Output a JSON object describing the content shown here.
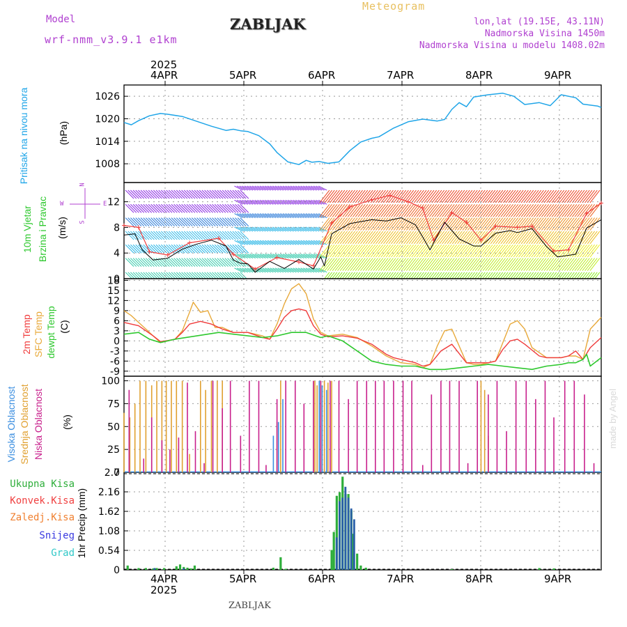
{
  "header": {
    "model_label": "Model",
    "model_name": "wrf-nmm_v3.9.1  e1km",
    "station": "ZABLJAK",
    "product": "Meteogram",
    "location": "lon,lat (19.15E, 43.11N)",
    "altitude": "Nadmorska Visina 1450m",
    "model_altitude": "Nadmorska Visina u modelu 1408.02m",
    "watermark": "made by Angel",
    "footer_station": "ZABLJAK"
  },
  "axes": {
    "year_top": "2025",
    "year_bottom": "2025",
    "day_labels": [
      "4APR",
      "5APR",
      "6APR",
      "7APR",
      "8APR",
      "9APR"
    ]
  },
  "panels": {
    "pressure": {
      "label_name": "Pritisak na nivou mora",
      "unit": "(hPa)",
      "ticks": [
        "1026",
        "1020",
        "1014",
        "1008"
      ]
    },
    "wind": {
      "label_name": "10m Vjetar",
      "label_name2": "Brzina i Pravac",
      "unit": "(m/s)",
      "ticks": [
        "12",
        "8",
        "4",
        "0"
      ],
      "compass": {
        "n": "N",
        "w": "W",
        "e": "E",
        "s": "S"
      }
    },
    "temp": {
      "label1": "2m Temp",
      "label2": "SFC Temp",
      "label3": "dewpt Temp",
      "unit": "(C)",
      "ticks": [
        "18",
        "15",
        "12",
        "9",
        "6",
        "3",
        "0",
        "-3",
        "-6",
        "-9"
      ]
    },
    "cloud": {
      "label1": "Visoka Oblacnost",
      "label2": "Srednja Oblacnost",
      "label3": "Niska Oblacnost",
      "unit": "(%)",
      "ticks": [
        "100",
        "75",
        "50",
        "25",
        "0"
      ]
    },
    "precip": {
      "legend": [
        "Ukupna Kisa",
        "Konvek.Kisa",
        "Zaledj.Kisa",
        "Snijeg",
        "Grad"
      ],
      "unit": "1hr Precip (mm)",
      "ticks": [
        "2.7",
        "2.16",
        "1.62",
        "1.08",
        "0.54",
        "0"
      ]
    }
  },
  "colors": {
    "pressure": "#1fa5e8",
    "temp_2m": "#f03a3a",
    "temp_sfc": "#e8a93a",
    "temp_dew": "#2ec82e",
    "cloud_high": "#3a8ee0",
    "cloud_mid": "#e0a030",
    "cloud_low": "#c8208c",
    "precip_total": "#2eae3a",
    "precip_conv": "#f04040",
    "precip_frz": "#f08030",
    "precip_snow": "#3a3ae0",
    "precip_grad": "#30c8c8",
    "wind_speed": "#000000",
    "wind_gust": "#f04040",
    "header_purple": "#b040d0",
    "header_orange": "#e8c060"
  },
  "chart_data": [
    {
      "type": "line",
      "title": "Pritisak na nivou mora",
      "ylabel": "hPa",
      "ylim": [
        1003,
        1029
      ],
      "x_units": "days since 4APR 00UTC",
      "series": [
        {
          "name": "Pritisak na nivou mora",
          "x": [
            -0.5,
            -0.4,
            -0.3,
            -0.15,
            0,
            0.1,
            0.3,
            0.5,
            0.7,
            0.9,
            1.0,
            1.1,
            1.2,
            1.35,
            1.5,
            1.6,
            1.75,
            1.9,
            2.0,
            2.08,
            2.18,
            2.3,
            2.45,
            2.6,
            2.75,
            2.9,
            3.0,
            3.2,
            3.4,
            3.6,
            3.8,
            3.9,
            4.0,
            4.1,
            4.2,
            4.3,
            4.5,
            4.7,
            4.85,
            5.0,
            5.2,
            5.35,
            5.5,
            5.7,
            5.8,
            6.0,
            6.05
          ],
          "values": [
            1019,
            1018.4,
            1019.5,
            1020.8,
            1021.4,
            1021.2,
            1020.6,
            1019.3,
            1018.0,
            1016.9,
            1017.2,
            1016.8,
            1016.6,
            1015.5,
            1013.3,
            1011.0,
            1008.5,
            1007.8,
            1008.9,
            1008.4,
            1008.6,
            1008.1,
            1008.5,
            1011.5,
            1013.8,
            1014.8,
            1015.2,
            1017.5,
            1019.2,
            1019.9,
            1019.4,
            1019.8,
            1022.5,
            1024.3,
            1023.2,
            1025.8,
            1026.4,
            1026.8,
            1026.0,
            1023.8,
            1024.3,
            1023.5,
            1026.4,
            1025.6,
            1023.9,
            1023.4,
            1023.0
          ]
        }
      ]
    },
    {
      "type": "line",
      "title": "10m Vjetar Brzina i Pravac",
      "ylabel": "m/s",
      "ylim": [
        0,
        15
      ],
      "x_units": "days since 4APR 00UTC",
      "series": [
        {
          "name": "Brzina",
          "x": [
            -0.5,
            -0.35,
            -0.25,
            -0.1,
            0.1,
            0.3,
            0.5,
            0.7,
            0.9,
            1.0,
            1.1,
            1.2,
            1.3,
            1.5,
            1.7,
            1.9,
            2.1,
            2.2,
            2.25,
            2.35,
            2.6,
            2.9,
            3.1,
            3.3,
            3.5,
            3.6,
            3.7,
            3.9,
            4.1,
            4.3,
            4.4,
            4.6,
            4.8,
            4.9,
            5.0,
            5.1,
            5.3,
            5.45,
            5.7,
            5.85,
            6.05
          ],
          "values": [
            6.8,
            7.0,
            4.5,
            2.9,
            3.2,
            4.6,
            5.4,
            6.0,
            5.1,
            2.9,
            2.4,
            2.3,
            1.0,
            2.7,
            1.6,
            3.0,
            1.5,
            3.4,
            2.0,
            7.0,
            8.6,
            9.2,
            9.0,
            9.5,
            8.4,
            6.5,
            4.5,
            8.8,
            6.2,
            5.1,
            5.1,
            7.1,
            7.5,
            7.2,
            7.5,
            7.8,
            5.0,
            3.4,
            3.8,
            7.9,
            9.2
          ]
        },
        {
          "name": "Udari",
          "x": [
            -0.5,
            -0.3,
            -0.15,
            0.1,
            0.4,
            0.8,
            1.0,
            1.3,
            1.6,
            1.9,
            2.1,
            2.35,
            2.6,
            2.9,
            3.15,
            3.4,
            3.6,
            3.75,
            4.0,
            4.2,
            4.4,
            4.6,
            4.9,
            5.1,
            5.4,
            5.6,
            5.85,
            6.05
          ],
          "values": [
            8.3,
            8.0,
            4.2,
            3.7,
            5.6,
            6.3,
            3.8,
            1.5,
            3.3,
            2.6,
            2.0,
            8.7,
            11.2,
            12.3,
            13.0,
            12.0,
            11.0,
            6.0,
            10.3,
            8.8,
            6.0,
            8.2,
            8.0,
            8.2,
            4.3,
            4.5,
            10.2,
            11.8
          ]
        }
      ]
    },
    {
      "type": "line",
      "title": "Temperatura",
      "ylabel": "C",
      "ylim": [
        -10.5,
        18.5
      ],
      "x_units": "days since 4APR 00UTC",
      "series": [
        {
          "name": "2m Temp",
          "x": [
            -0.5,
            -0.3,
            -0.1,
            0.0,
            0.1,
            0.2,
            0.3,
            0.4,
            0.55,
            0.7,
            0.85,
            1.0,
            1.2,
            1.4,
            1.5,
            1.6,
            1.7,
            1.8,
            1.9,
            2.0,
            2.1,
            2.2,
            2.3,
            2.5,
            2.7,
            2.9,
            3.1,
            3.2,
            3.3,
            3.4,
            3.5,
            3.6,
            3.7,
            3.85,
            4.0,
            4.2,
            4.3,
            4.4,
            4.5,
            4.6,
            4.7,
            4.8,
            4.9,
            5.0,
            5.2,
            5.3,
            5.4,
            5.5,
            5.6,
            5.7,
            5.8,
            5.9,
            6.05
          ],
          "values": [
            5.5,
            4.5,
            1.5,
            -0.2,
            0.1,
            0.5,
            2.5,
            5.0,
            5.8,
            5.0,
            3.5,
            2.5,
            2.5,
            1.0,
            0.5,
            3.5,
            7.0,
            9.0,
            9.5,
            9.0,
            4.5,
            2.0,
            1.2,
            1.5,
            0.8,
            -1.0,
            -4.0,
            -5.0,
            -5.5,
            -6.0,
            -6.5,
            -7.5,
            -7.0,
            -3.0,
            -1.0,
            -6.5,
            -6.5,
            -6.5,
            -6.5,
            -6.0,
            -2.5,
            0.0,
            0.5,
            -1.0,
            -4.5,
            -5.0,
            -5.0,
            -5.0,
            -4.5,
            -3.0,
            -5.5,
            -2.0,
            1.0
          ]
        },
        {
          "name": "SFC Temp",
          "x": [
            -0.5,
            -0.4,
            -0.3,
            -0.2,
            -0.1,
            0.0,
            0.1,
            0.2,
            0.3,
            0.4,
            0.45,
            0.55,
            0.65,
            0.75,
            0.85,
            1.0,
            1.2,
            1.4,
            1.5,
            1.6,
            1.7,
            1.8,
            1.9,
            2.0,
            2.1,
            2.2,
            2.3,
            2.5,
            2.7,
            2.9,
            3.1,
            3.3,
            3.5,
            3.6,
            3.7,
            3.8,
            3.9,
            4.0,
            4.2,
            4.3,
            4.4,
            4.5,
            4.6,
            4.7,
            4.8,
            4.9,
            5.0,
            5.1,
            5.3,
            5.5,
            5.6,
            5.7,
            5.8,
            5.9,
            6.05
          ],
          "values": [
            9.0,
            7.5,
            5.5,
            3.5,
            1.5,
            -0.5,
            0.0,
            0.5,
            3.0,
            8.5,
            11.5,
            8.5,
            9.0,
            4.0,
            4.0,
            2.5,
            2.5,
            1.5,
            0.5,
            5.0,
            11.0,
            15.5,
            17.0,
            14.0,
            6.5,
            2.5,
            1.5,
            2.0,
            1.0,
            -1.5,
            -4.5,
            -6.5,
            -7.0,
            -8.0,
            -7.0,
            -1.5,
            3.0,
            3.5,
            -6.5,
            -7.0,
            -7.0,
            -6.5,
            -6.0,
            -0.5,
            5.0,
            6.0,
            3.5,
            -2.0,
            -5.0,
            -5.0,
            -4.5,
            -4.5,
            -5.5,
            3.5,
            7.0
          ]
        },
        {
          "name": "dewpt Temp",
          "x": [
            -0.5,
            -0.3,
            -0.15,
            0.0,
            0.2,
            0.5,
            0.8,
            1.0,
            1.2,
            1.4,
            1.6,
            1.8,
            2.0,
            2.2,
            2.3,
            2.5,
            2.7,
            2.9,
            3.1,
            3.3,
            3.5,
            3.7,
            3.9,
            4.1,
            4.3,
            4.5,
            4.7,
            4.9,
            5.1,
            5.3,
            5.5,
            5.6,
            5.7,
            5.8,
            5.85,
            5.9,
            6.05
          ],
          "values": [
            2.0,
            2.5,
            0.5,
            -0.5,
            0.5,
            1.5,
            2.5,
            2.0,
            1.5,
            1.0,
            1.5,
            2.5,
            2.5,
            1.0,
            1.5,
            0.0,
            -3.0,
            -6.0,
            -7.0,
            -7.5,
            -7.5,
            -8.5,
            -8.5,
            -8.0,
            -7.5,
            -7.0,
            -7.5,
            -8.0,
            -8.5,
            -7.5,
            -7.0,
            -6.5,
            -6.5,
            -5.5,
            -4.0,
            -7.5,
            -5.0
          ]
        }
      ]
    },
    {
      "type": "bar",
      "title": "Oblacnost",
      "ylabel": "%",
      "ylim": [
        0,
        100
      ],
      "x_units": "days since 4APR 00UTC",
      "series": [
        {
          "name": "Niska Oblacnost",
          "x": [
            -0.43,
            -0.23,
            -0.12,
            0.02,
            0.13,
            0.25,
            0.37,
            0.48,
            0.6,
            0.72,
            0.85,
            0.96,
            1.1,
            1.22,
            1.35,
            1.45,
            1.6,
            1.72,
            1.85,
            1.97,
            2.1,
            2.2,
            2.33,
            2.45,
            2.58,
            2.7,
            2.83,
            2.95,
            3.07,
            3.2,
            3.33,
            3.45,
            3.6,
            3.72,
            3.85,
            3.97,
            4.1,
            4.22,
            4.35,
            4.5,
            4.62,
            4.75,
            4.88,
            5.02,
            5.15,
            5.28,
            5.4,
            5.55,
            5.68,
            5.82,
            5.95
          ],
          "values": [
            90,
            15,
            60,
            35,
            25,
            38,
            98,
            45,
            10,
            100,
            70,
            100,
            40,
            100,
            100,
            8,
            80,
            100,
            100,
            75,
            100,
            100,
            100,
            100,
            80,
            100,
            100,
            100,
            100,
            100,
            100,
            100,
            8,
            85,
            100,
            100,
            100,
            10,
            100,
            85,
            100,
            45,
            100,
            100,
            80,
            100,
            60,
            100,
            100,
            85,
            10
          ]
        },
        {
          "name": "Srednja Oblacnost",
          "x": [
            -0.5,
            -0.42,
            -0.35,
            -0.28,
            -0.2,
            -0.12,
            -0.05,
            0.02,
            0.08,
            0.15,
            0.22,
            0.3,
            0.4,
            0.55,
            0.62,
            0.7,
            0.78,
            0.85,
            1.6,
            1.65,
            2.1,
            2.12,
            2.15,
            2.2,
            2.25,
            2.3,
            2.35,
            4.4,
            4.45,
            4.5
          ],
          "values": [
            65,
            60,
            75,
            100,
            100,
            95,
            100,
            100,
            100,
            100,
            100,
            100,
            20,
            100,
            90,
            100,
            100,
            100,
            55,
            100,
            100,
            100,
            95,
            100,
            100,
            98,
            100,
            100,
            90,
            40
          ]
        },
        {
          "name": "Visoka Oblacnost",
          "x": [
            -0.5,
            1.55,
            1.62,
            1.68,
            2.18,
            2.22,
            2.28
          ],
          "values": [
            0,
            40,
            55,
            80,
            100,
            95,
            90
          ]
        }
      ]
    },
    {
      "type": "bar",
      "title": "1hr Precip",
      "ylabel": "mm",
      "ylim": [
        0,
        2.7
      ],
      "x_units": "days since 4APR 00UTC",
      "series": [
        {
          "name": "Ukupna Kisa",
          "x": [
            -0.45,
            -0.3,
            -0.2,
            -0.1,
            -0.05,
            0.05,
            0.22,
            0.27,
            0.32,
            0.37,
            0.42,
            0.47,
            1.55,
            1.65,
            1.72,
            2.35,
            2.38,
            2.42,
            2.46,
            2.5,
            2.54,
            2.58,
            2.62,
            2.65,
            2.7,
            2.75,
            2.82,
            4.0,
            5.2,
            5.4
          ],
          "values": [
            0.12,
            0.05,
            0.05,
            0.04,
            0.05,
            0.05,
            0.1,
            0.15,
            0.08,
            0.06,
            0.04,
            0.12,
            0.06,
            0.35,
            0.03,
            0.55,
            1.05,
            2.05,
            2.15,
            2.58,
            2.1,
            2.1,
            1.65,
            1.0,
            0.45,
            0.12,
            0.06,
            0.02,
            0.05,
            0.04
          ]
        },
        {
          "name": "Snijeg",
          "x": [
            -0.1,
            0.3,
            2.4,
            2.44,
            2.48,
            2.52,
            2.56,
            2.6,
            2.64
          ],
          "values": [
            0.05,
            0.04,
            0.9,
            1.9,
            2.0,
            2.3,
            2.0,
            1.7,
            1.4
          ]
        }
      ]
    }
  ]
}
